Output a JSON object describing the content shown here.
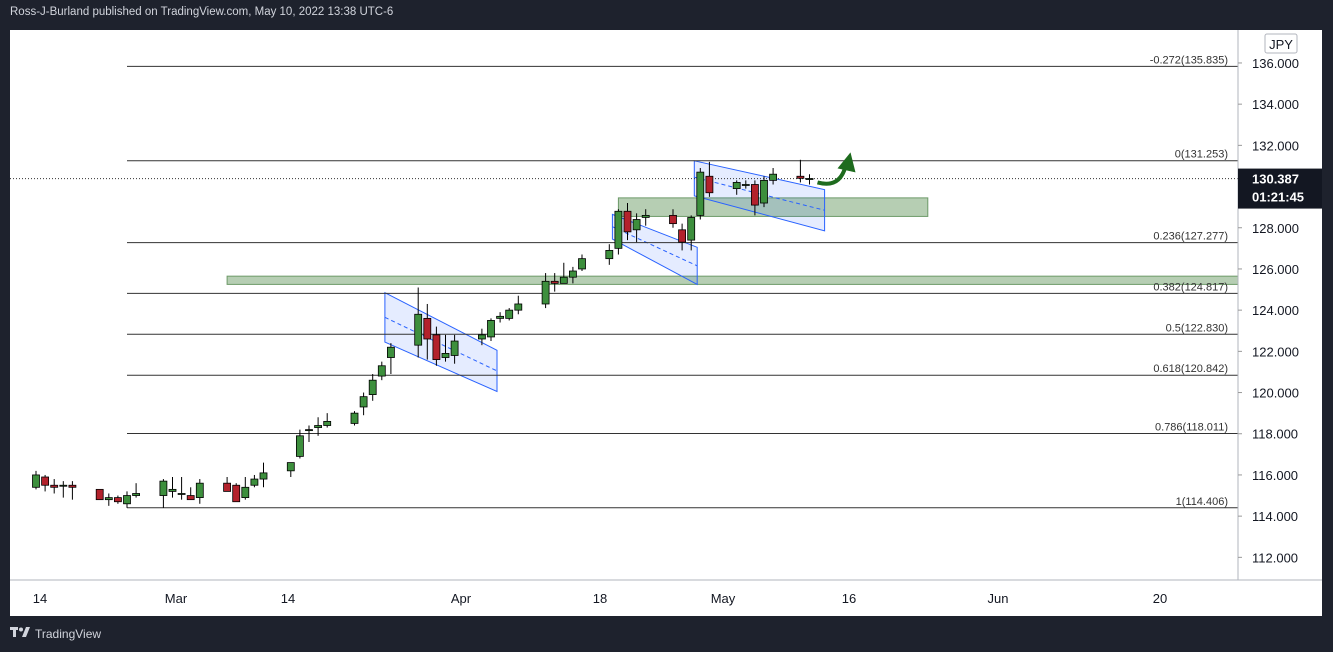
{
  "header": {
    "text": "Ross-J-Burland published on TradingView.com, May 10, 2022 13:38 UTC-6"
  },
  "footer": {
    "brand": "TradingView",
    "logo_icon": "tradingview-logo-icon"
  },
  "chart_data": {
    "type": "candlestick",
    "currency": "JPY",
    "ylim": [
      110.9,
      137.6
    ],
    "y_ticks": [
      "136.000",
      "134.000",
      "132.000",
      "130.000",
      "128.000",
      "126.000",
      "124.000",
      "122.000",
      "120.000",
      "118.000",
      "116.000",
      "114.000",
      "112.000"
    ],
    "x_ticks": [
      "14",
      "Mar",
      "14",
      "Apr",
      "18",
      "May",
      "16",
      "Jun",
      "20"
    ],
    "last_price": {
      "value": "130.387",
      "countdown": "01:21:45"
    },
    "fib_levels": [
      {
        "label": "-0.272(135.835)",
        "value": 135.835
      },
      {
        "label": "0(131.253)",
        "value": 131.253
      },
      {
        "label": "0.236(127.277)",
        "value": 127.277
      },
      {
        "label": "0.382(124.817)",
        "value": 124.817
      },
      {
        "label": "0.5(122.830)",
        "value": 122.83
      },
      {
        "label": "0.618(120.842)",
        "value": 120.842
      },
      {
        "label": "0.786(118.011)",
        "value": 118.011
      },
      {
        "label": "1(114.406)",
        "value": 114.406
      }
    ],
    "zones": [
      {
        "x0": "2022-03-07",
        "x1": "2022-06-30",
        "y0": 125.25,
        "y1": 125.65,
        "color": "#8fb38a"
      },
      {
        "x0": "2022-04-19",
        "x1": "2022-05-23",
        "y0": 128.55,
        "y1": 129.45,
        "color": "#8fb38a"
      }
    ],
    "channels": [
      {
        "x0": "2022-03-25",
        "x1": "2022-04-05",
        "top": [
          124.85,
          122.05
        ],
        "bottom": [
          122.45,
          120.05
        ],
        "mid": [
          123.65,
          121.05
        ]
      },
      {
        "x0": "2022-04-19",
        "x1": "2022-04-27",
        "top": [
          128.65,
          127.05
        ],
        "bottom": [
          127.45,
          125.25
        ],
        "mid": [
          128.05,
          126.15
        ]
      },
      {
        "x0": "2022-04-28",
        "x1": "2022-05-11",
        "top": [
          131.25,
          129.85
        ],
        "bottom": [
          129.55,
          127.85
        ],
        "mid": [
          130.45,
          128.85
        ]
      }
    ],
    "candles": [
      {
        "d": "2022-02-14",
        "o": 115.4,
        "h": 116.2,
        "l": 115.3,
        "c": 116.0
      },
      {
        "d": "2022-02-15",
        "o": 115.9,
        "h": 116.0,
        "l": 115.2,
        "c": 115.5
      },
      {
        "d": "2022-02-16",
        "o": 115.5,
        "h": 115.8,
        "l": 115.1,
        "c": 115.4
      },
      {
        "d": "2022-02-17",
        "o": 115.5,
        "h": 115.7,
        "l": 114.9,
        "c": 115.5
      },
      {
        "d": "2022-02-18",
        "o": 115.5,
        "h": 115.7,
        "l": 114.8,
        "c": 115.4
      },
      {
        "d": "2022-02-21",
        "o": 115.3,
        "h": 115.3,
        "l": 114.8,
        "c": 114.8
      },
      {
        "d": "2022-02-22",
        "o": 114.8,
        "h": 115.1,
        "l": 114.5,
        "c": 114.9
      },
      {
        "d": "2022-02-23",
        "o": 114.9,
        "h": 115.0,
        "l": 114.6,
        "c": 114.7
      },
      {
        "d": "2022-02-24",
        "o": 114.6,
        "h": 115.2,
        "l": 114.4,
        "c": 115.0
      },
      {
        "d": "2022-02-25",
        "o": 115.0,
        "h": 115.6,
        "l": 114.9,
        "c": 115.1
      },
      {
        "d": "2022-02-28",
        "o": 115.0,
        "h": 115.8,
        "l": 114.4,
        "c": 115.7
      },
      {
        "d": "2022-03-01",
        "o": 115.2,
        "h": 115.9,
        "l": 114.9,
        "c": 115.3
      },
      {
        "d": "2022-03-02",
        "o": 115.1,
        "h": 115.9,
        "l": 114.8,
        "c": 115.1
      },
      {
        "d": "2022-03-03",
        "o": 115.0,
        "h": 115.4,
        "l": 114.9,
        "c": 114.8
      },
      {
        "d": "2022-03-04",
        "o": 114.9,
        "h": 115.8,
        "l": 114.6,
        "c": 115.6
      },
      {
        "d": "2022-03-07",
        "o": 115.6,
        "h": 115.9,
        "l": 115.2,
        "c": 115.2
      },
      {
        "d": "2022-03-08",
        "o": 115.5,
        "h": 115.6,
        "l": 114.7,
        "c": 114.7
      },
      {
        "d": "2022-03-09",
        "o": 114.9,
        "h": 115.9,
        "l": 114.8,
        "c": 115.4
      },
      {
        "d": "2022-03-10",
        "o": 115.5,
        "h": 116.0,
        "l": 115.4,
        "c": 115.8
      },
      {
        "d": "2022-03-11",
        "o": 115.8,
        "h": 116.6,
        "l": 115.4,
        "c": 116.1
      },
      {
        "d": "2022-03-14",
        "o": 116.2,
        "h": 116.6,
        "l": 115.9,
        "c": 116.6
      },
      {
        "d": "2022-03-15",
        "o": 116.9,
        "h": 118.2,
        "l": 116.8,
        "c": 117.9
      },
      {
        "d": "2022-03-16",
        "o": 118.2,
        "h": 118.4,
        "l": 117.6,
        "c": 118.2
      },
      {
        "d": "2022-03-17",
        "o": 118.3,
        "h": 118.8,
        "l": 117.9,
        "c": 118.4
      },
      {
        "d": "2022-03-18",
        "o": 118.4,
        "h": 119.0,
        "l": 118.3,
        "c": 118.6
      },
      {
        "d": "2022-03-21",
        "o": 118.5,
        "h": 119.1,
        "l": 118.4,
        "c": 119.0
      },
      {
        "d": "2022-03-22",
        "o": 119.3,
        "h": 120.0,
        "l": 118.9,
        "c": 119.8
      },
      {
        "d": "2022-03-23",
        "o": 119.9,
        "h": 120.9,
        "l": 119.6,
        "c": 120.6
      },
      {
        "d": "2022-03-24",
        "o": 120.8,
        "h": 121.5,
        "l": 120.6,
        "c": 121.3
      },
      {
        "d": "2022-03-25",
        "o": 121.7,
        "h": 122.4,
        "l": 120.9,
        "c": 122.2
      },
      {
        "d": "2022-03-28",
        "o": 122.3,
        "h": 125.1,
        "l": 121.7,
        "c": 123.8
      },
      {
        "d": "2022-03-29",
        "o": 123.6,
        "h": 124.3,
        "l": 121.6,
        "c": 122.6
      },
      {
        "d": "2022-03-30",
        "o": 122.8,
        "h": 123.2,
        "l": 121.3,
        "c": 121.6
      },
      {
        "d": "2022-03-31",
        "o": 121.7,
        "h": 122.8,
        "l": 121.5,
        "c": 121.9
      },
      {
        "d": "2022-04-01",
        "o": 121.8,
        "h": 122.8,
        "l": 121.4,
        "c": 122.5
      },
      {
        "d": "2022-04-04",
        "o": 122.6,
        "h": 123.1,
        "l": 122.3,
        "c": 122.8
      },
      {
        "d": "2022-04-05",
        "o": 122.7,
        "h": 123.6,
        "l": 122.5,
        "c": 123.5
      },
      {
        "d": "2022-04-06",
        "o": 123.6,
        "h": 123.9,
        "l": 123.4,
        "c": 123.7
      },
      {
        "d": "2022-04-07",
        "o": 123.6,
        "h": 124.1,
        "l": 123.5,
        "c": 124.0
      },
      {
        "d": "2022-04-08",
        "o": 124.0,
        "h": 124.7,
        "l": 123.8,
        "c": 124.3
      },
      {
        "d": "2022-04-11",
        "o": 124.3,
        "h": 125.8,
        "l": 124.1,
        "c": 125.4
      },
      {
        "d": "2022-04-12",
        "o": 125.4,
        "h": 125.8,
        "l": 124.9,
        "c": 125.3
      },
      {
        "d": "2022-04-13",
        "o": 125.3,
        "h": 126.3,
        "l": 125.3,
        "c": 125.6
      },
      {
        "d": "2022-04-14",
        "o": 125.6,
        "h": 126.1,
        "l": 125.3,
        "c": 125.9
      },
      {
        "d": "2022-04-15",
        "o": 126.0,
        "h": 126.7,
        "l": 125.9,
        "c": 126.5
      },
      {
        "d": "2022-04-18",
        "o": 126.5,
        "h": 127.2,
        "l": 126.2,
        "c": 126.9
      },
      {
        "d": "2022-04-19",
        "o": 127.0,
        "h": 128.9,
        "l": 126.7,
        "c": 128.8
      },
      {
        "d": "2022-04-20",
        "o": 128.8,
        "h": 129.2,
        "l": 127.4,
        "c": 127.8
      },
      {
        "d": "2022-04-21",
        "o": 127.9,
        "h": 128.7,
        "l": 127.3,
        "c": 128.4
      },
      {
        "d": "2022-04-22",
        "o": 128.5,
        "h": 128.9,
        "l": 128.1,
        "c": 128.6
      },
      {
        "d": "2022-04-25",
        "o": 128.6,
        "h": 128.9,
        "l": 128.0,
        "c": 128.2
      },
      {
        "d": "2022-04-26",
        "o": 127.9,
        "h": 128.2,
        "l": 126.9,
        "c": 127.3
      },
      {
        "d": "2022-04-27",
        "o": 127.4,
        "h": 128.6,
        "l": 126.9,
        "c": 128.5
      },
      {
        "d": "2022-04-28",
        "o": 128.6,
        "h": 130.9,
        "l": 128.4,
        "c": 130.7
      },
      {
        "d": "2022-04-29",
        "o": 130.5,
        "h": 131.2,
        "l": 129.5,
        "c": 129.7
      },
      {
        "d": "2022-05-02",
        "o": 129.9,
        "h": 130.3,
        "l": 129.6,
        "c": 130.2
      },
      {
        "d": "2022-05-03",
        "o": 130.1,
        "h": 130.3,
        "l": 129.9,
        "c": 130.1
      },
      {
        "d": "2022-05-04",
        "o": 130.1,
        "h": 130.3,
        "l": 128.6,
        "c": 129.1
      },
      {
        "d": "2022-05-05",
        "o": 129.2,
        "h": 130.5,
        "l": 129.0,
        "c": 130.3
      },
      {
        "d": "2022-05-06",
        "o": 130.3,
        "h": 130.9,
        "l": 130.1,
        "c": 130.6
      },
      {
        "d": "2022-05-09",
        "o": 130.5,
        "h": 131.3,
        "l": 130.2,
        "c": 130.4
      },
      {
        "d": "2022-05-10",
        "o": 130.35,
        "h": 130.6,
        "l": 130.1,
        "c": 130.39
      }
    ],
    "up_color": "#3d8f3d",
    "down_color": "#b3222c",
    "fib_line_color": "#333333",
    "channel_color": "#2962ff",
    "arrow_color": "#1e6b1e"
  }
}
